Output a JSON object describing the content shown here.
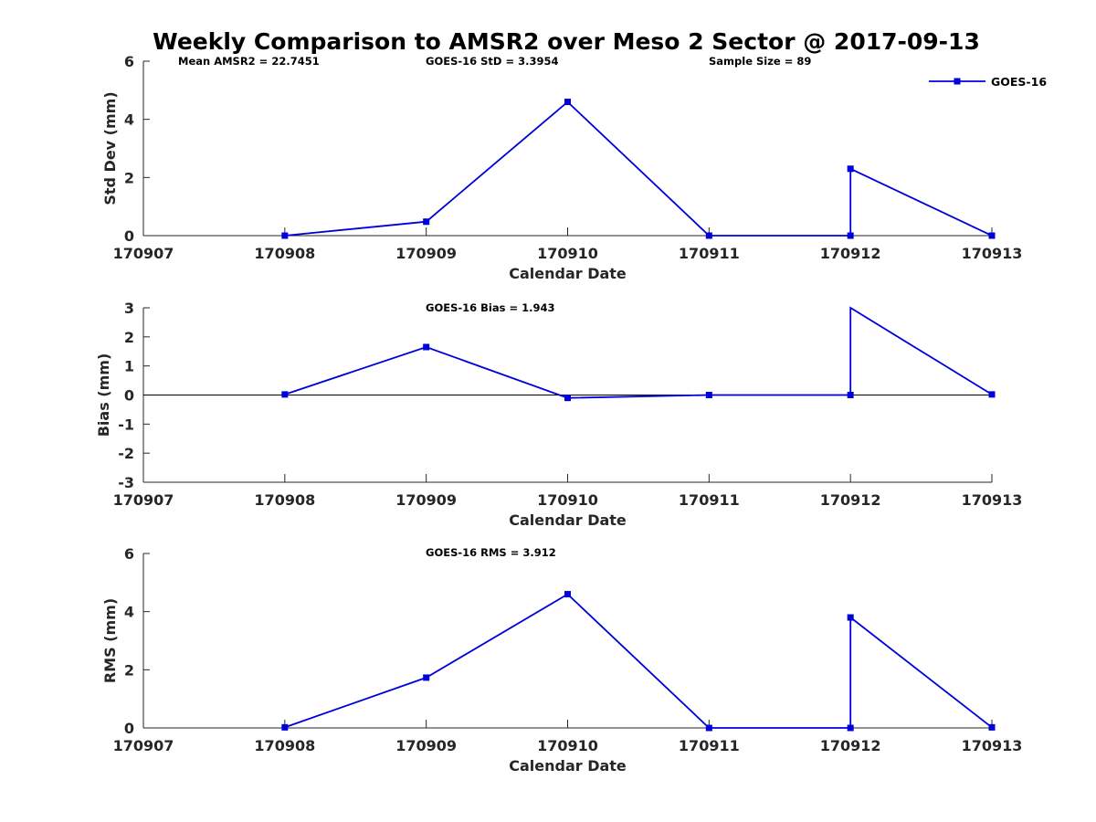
{
  "chart_data": {
    "type": "line",
    "title": "Weekly Comparison to AMSR2 over Meso 2 Sector @ 2017-09-13",
    "colors": {
      "series": "#0000dd",
      "axis": "#262626",
      "zero_line": "#000000"
    },
    "legend": {
      "label": "GOES-16",
      "placement": "top-right"
    },
    "x_ticks": [
      "170907",
      "170908",
      "170909",
      "170910",
      "170911",
      "170912",
      "170913"
    ],
    "panels": [
      {
        "id": "std",
        "ylabel": "Std Dev (mm)",
        "xlabel": "Calendar Date",
        "ylim": [
          0,
          6
        ],
        "yticks": [
          "0",
          "2",
          "4",
          "6"
        ],
        "annotations": [
          "Mean AMSR2 = 22.7451",
          "GOES-16 StD = 3.3954",
          "Sample Size = 89"
        ],
        "zero_line": false,
        "series": [
          {
            "name": "GOES-16",
            "x": [
              1,
              2,
              3,
              4,
              5,
              5,
              6
            ],
            "y": [
              0.0,
              0.48,
              4.6,
              0.0,
              0.0,
              2.3,
              0.0
            ],
            "markers": [
              true,
              true,
              true,
              true,
              true,
              true,
              true
            ]
          }
        ]
      },
      {
        "id": "bias",
        "ylabel": "Bias (mm)",
        "xlabel": "Calendar Date",
        "ylim": [
          -3,
          3
        ],
        "yticks": [
          "-3",
          "-2",
          "-1",
          "0",
          "1",
          "2",
          "3"
        ],
        "annotations": [
          "GOES-16 Bias  = 1.943"
        ],
        "zero_line": true,
        "series": [
          {
            "name": "GOES-16",
            "x": [
              1,
              2,
              3,
              4,
              5,
              5,
              6
            ],
            "y": [
              0.02,
              1.65,
              -0.1,
              0.0,
              0.0,
              3.0,
              0.02
            ],
            "markers": [
              true,
              true,
              true,
              true,
              true,
              false,
              true
            ]
          }
        ]
      },
      {
        "id": "rms",
        "ylabel": "RMS (mm)",
        "xlabel": "Calendar Date",
        "ylim": [
          0,
          6
        ],
        "yticks": [
          "0",
          "2",
          "4",
          "6"
        ],
        "annotations": [
          "GOES-16 RMS = 3.912"
        ],
        "zero_line": false,
        "series": [
          {
            "name": "GOES-16",
            "x": [
              1,
              2,
              3,
              4,
              5,
              5,
              6
            ],
            "y": [
              0.02,
              1.73,
              4.6,
              0.0,
              0.0,
              3.8,
              0.02
            ],
            "markers": [
              true,
              true,
              true,
              true,
              true,
              true,
              true
            ]
          }
        ]
      }
    ]
  }
}
